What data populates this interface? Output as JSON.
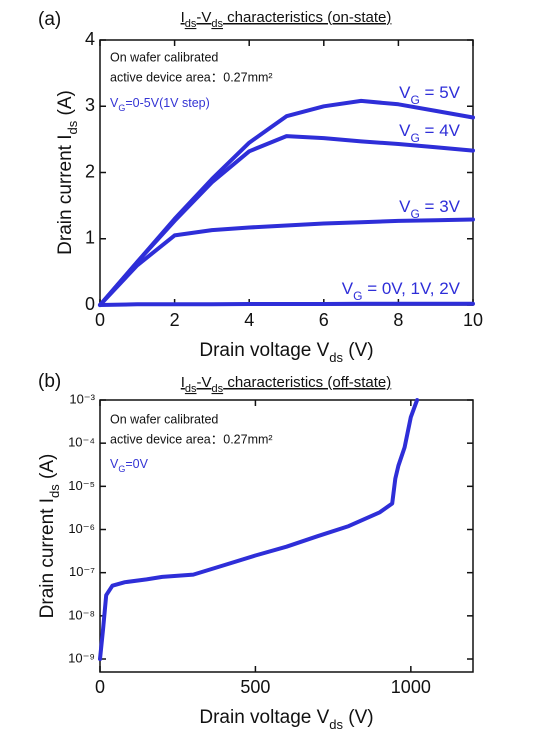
{
  "chart_data": [
    {
      "type": "line",
      "panel": "(a)",
      "title": [
        "I",
        "ds",
        "-V",
        "ds",
        " characteristics (on-state)"
      ],
      "xlabel": [
        "Drain voltage V",
        "ds",
        " (V)"
      ],
      "ylabel": [
        "Drain current I",
        "ds",
        " (A)"
      ],
      "annotations": [
        {
          "text": "On wafer calibrated"
        },
        {
          "text": "active device area：0.27mm²"
        },
        {
          "text": [
            "V",
            "G",
            "=0-5V(1V step)"
          ],
          "color": "#3434d4"
        }
      ],
      "x": [
        0,
        1,
        2,
        3,
        4,
        5,
        6,
        7,
        8,
        9,
        10
      ],
      "series": [
        {
          "name": [
            "V",
            "G",
            " = 5V"
          ],
          "color": "#2e2ed8",
          "values": [
            0,
            0.65,
            1.3,
            1.9,
            2.45,
            2.85,
            3.0,
            3.08,
            3.03,
            2.93,
            2.83
          ]
        },
        {
          "name": [
            "V",
            "G",
            " = 4V"
          ],
          "color": "#2e2ed8",
          "values": [
            0,
            0.65,
            1.27,
            1.85,
            2.32,
            2.55,
            2.52,
            2.47,
            2.43,
            2.38,
            2.33
          ]
        },
        {
          "name": [
            "V",
            "G",
            " = 3V"
          ],
          "color": "#2e2ed8",
          "values": [
            0,
            0.6,
            1.05,
            1.13,
            1.17,
            1.2,
            1.23,
            1.25,
            1.27,
            1.28,
            1.29
          ]
        },
        {
          "name": [
            "V",
            "G",
            " = 0V, 1V, 2V"
          ],
          "color": "#2e2ed8",
          "values": [
            0,
            0.01,
            0.01,
            0.01,
            0.015,
            0.015,
            0.015,
            0.02,
            0.02,
            0.02,
            0.02
          ]
        }
      ],
      "xlim": [
        0,
        10
      ],
      "xticks": [
        0,
        2,
        4,
        6,
        8,
        10
      ],
      "ylim": [
        0,
        4
      ],
      "yticks": [
        0,
        1,
        2,
        3,
        4
      ],
      "log_y": false
    },
    {
      "type": "line",
      "panel": "(b)",
      "title": [
        "I",
        "ds",
        "-V",
        "ds",
        " characteristics (off-state)"
      ],
      "xlabel": [
        "Drain voltage V",
        "ds",
        " (V)"
      ],
      "ylabel": [
        "Drain current I",
        "ds",
        " (A)"
      ],
      "annotations": [
        {
          "text": "On wafer calibrated"
        },
        {
          "text": "active device area：0.27mm²"
        },
        {
          "text": [
            "V",
            "G",
            "=0V"
          ],
          "color": "#3434d4"
        }
      ],
      "x": [
        0,
        10,
        20,
        40,
        80,
        150,
        200,
        300,
        400,
        500,
        600,
        700,
        800,
        900,
        940,
        950,
        960,
        980,
        1000,
        1020
      ],
      "series": [
        {
          "color": "#2e2ed8",
          "values": [
            1e-09,
            5e-09,
            3e-08,
            5e-08,
            6e-08,
            7e-08,
            8e-08,
            9e-08,
            1.5e-07,
            2.5e-07,
            4e-07,
            7e-07,
            1.2e-06,
            2.5e-06,
            4e-06,
            1.5e-05,
            3e-05,
            8e-05,
            0.0004,
            0.001
          ]
        }
      ],
      "xlim": [
        0,
        1200
      ],
      "xticks": [
        0,
        500,
        1000
      ],
      "ylim": [
        5e-10,
        0.001
      ],
      "yticks": [
        {
          "value": 1e-09,
          "label": "10⁻⁹"
        },
        {
          "value": 1e-08,
          "label": "10⁻⁸"
        },
        {
          "value": 1e-07,
          "label": "10⁻⁷"
        },
        {
          "value": 1e-06,
          "label": "10⁻⁶"
        },
        {
          "value": 1e-05,
          "label": "10⁻⁵"
        },
        {
          "value": 0.0001,
          "label": "10⁻⁴"
        },
        {
          "value": 0.001,
          "label": "10⁻³"
        }
      ],
      "log_y": true
    }
  ]
}
